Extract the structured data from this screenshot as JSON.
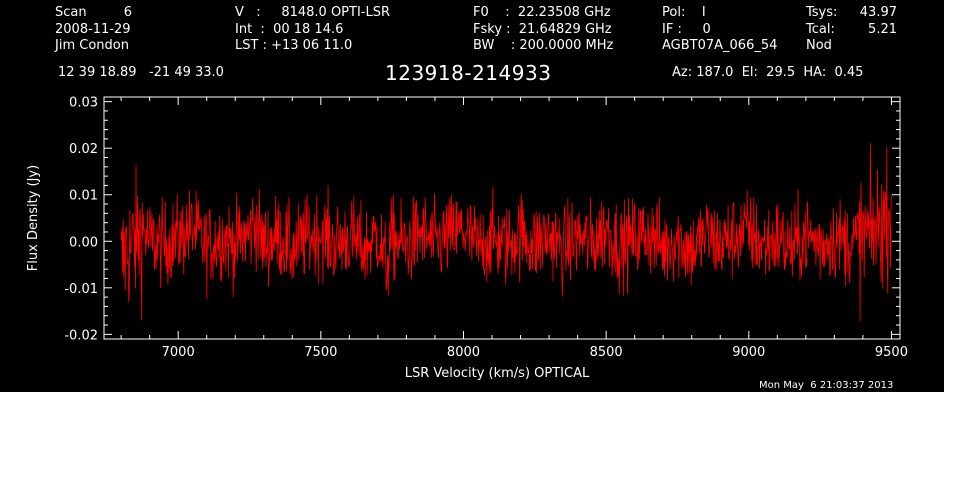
{
  "header": {
    "col1": [
      "Scan         6",
      "2008-11-29",
      "Jim Condon"
    ],
    "col2": [
      "V   :     8148.0 OPTI-LSR",
      "Int  :  00 18 14.6",
      "LST : +13 06 11.0"
    ],
    "col3": [
      "F0    :  22.23508 GHz",
      "Fsky :  21.64829 GHz",
      "BW    : 200.0000 MHz"
    ],
    "col4": [
      "Pol:    I",
      "IF :     0",
      "AGBT07A_066_54"
    ],
    "col5_labels": [
      "Tsys:",
      "Tcal:",
      "Nod"
    ],
    "col5_values": [
      "43.97",
      "5.21",
      ""
    ],
    "coords": "12 39 18.89   -21 49 33.0",
    "source": "123918-214933",
    "azelha": "Az: 187.0  El:  29.5  HA:  0.45"
  },
  "footer": {
    "timestamp": "Mon May  6 21:03:37 2013"
  },
  "colors": {
    "background": "#000000",
    "axes": "#ffffff",
    "trace": "#ff0000"
  },
  "chart_data": {
    "type": "line",
    "xlabel": "LSR Velocity (km/s) OPTICAL",
    "ylabel": "Flux Density (Jy)",
    "xlim": [
      6740,
      9530
    ],
    "ylim": [
      -0.021,
      0.031
    ],
    "x_ticks": [
      7000,
      7500,
      8000,
      8500,
      9000,
      9500
    ],
    "y_ticks": [
      -0.02,
      -0.01,
      0.0,
      0.01,
      0.02,
      0.03
    ],
    "y_tick_labels": [
      "-0.02",
      "-0.01",
      "0.00",
      "0.01",
      "0.02",
      "0.03"
    ],
    "series": [
      {
        "x": [
          6800,
          6820,
          6840,
          6860,
          6880,
          6900,
          6950,
          7000,
          7050,
          7100,
          7150,
          7200,
          7250,
          7270,
          7300,
          7350,
          7400,
          7450,
          7500,
          7550,
          7600,
          7650,
          7700,
          7730,
          7750,
          7800,
          7850,
          7900,
          7950,
          8000,
          8050,
          8100,
          8150,
          8200,
          8250,
          8300,
          8350,
          8400,
          8450,
          8500,
          8550,
          8600,
          8650,
          8700,
          8750,
          8800,
          8850,
          8900,
          8950,
          9000,
          9050,
          9100,
          9150,
          9200,
          9250,
          9300,
          9350,
          9380,
          9400,
          9420,
          9440,
          9460,
          9480,
          9500
        ],
        "y": [
          -0.015,
          -0.005,
          -0.003,
          0.003,
          0.006,
          0.0,
          -0.002,
          0.002,
          0.008,
          -0.004,
          0.003,
          -0.002,
          0.005,
          0.012,
          -0.003,
          0.004,
          -0.006,
          0.002,
          0.006,
          -0.002,
          0.003,
          -0.005,
          0.004,
          -0.016,
          0.002,
          -0.003,
          0.005,
          -0.002,
          0.003,
          0.007,
          -0.004,
          0.002,
          -0.003,
          0.005,
          -0.002,
          0.004,
          -0.005,
          0.003,
          -0.002,
          0.008,
          -0.003,
          0.002,
          0.005,
          -0.004,
          0.002,
          -0.006,
          0.004,
          -0.002,
          0.003,
          0.007,
          -0.003,
          0.002,
          -0.005,
          0.004,
          -0.002,
          0.003,
          -0.001,
          0.0,
          0.002,
          0.004,
          0.006,
          0.01,
          0.014,
          0.02
        ]
      }
    ]
  }
}
